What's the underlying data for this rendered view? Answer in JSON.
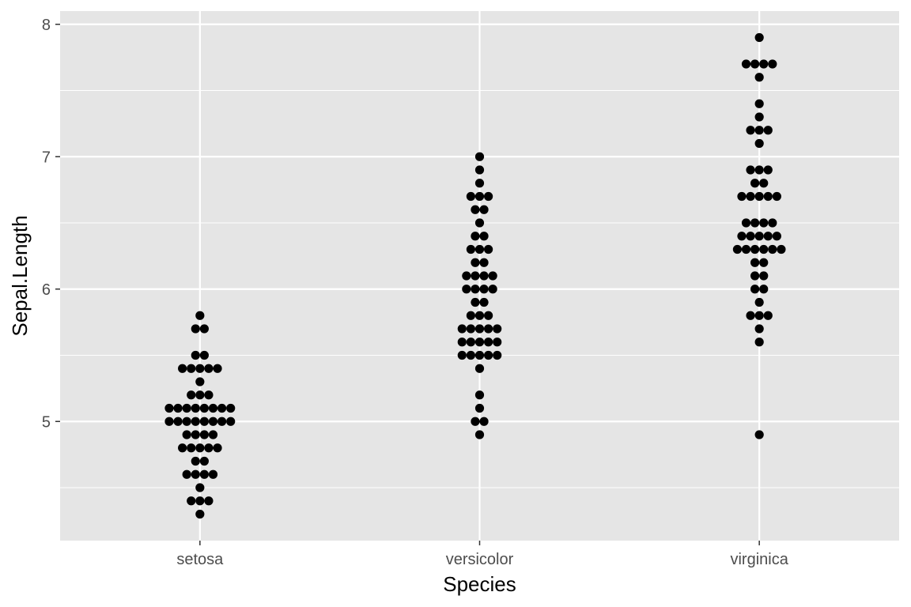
{
  "chart_data": {
    "type": "scatter",
    "subtype": "dotplot",
    "xlabel": "Species",
    "ylabel": "Sepal.Length",
    "categories": [
      "setosa",
      "versicolor",
      "virginica"
    ],
    "ylim": [
      4.1,
      8.1
    ],
    "y_ticks": [
      5,
      6,
      7,
      8
    ],
    "y_minor_ticks": [
      4.5,
      5.5,
      6.5,
      7.5
    ],
    "grid": true,
    "legend": "none",
    "colors": {
      "panel": "#e5e5e5",
      "grid": "#ffffff",
      "point": "#000000"
    },
    "bin_counts": [
      [
        {
          "y": 4.3,
          "n": 1
        },
        {
          "y": 4.4,
          "n": 3
        },
        {
          "y": 4.5,
          "n": 1
        },
        {
          "y": 4.6,
          "n": 4
        },
        {
          "y": 4.7,
          "n": 2
        },
        {
          "y": 4.8,
          "n": 5
        },
        {
          "y": 4.9,
          "n": 4
        },
        {
          "y": 5.0,
          "n": 8
        },
        {
          "y": 5.1,
          "n": 8
        },
        {
          "y": 5.2,
          "n": 3
        },
        {
          "y": 5.3,
          "n": 1
        },
        {
          "y": 5.4,
          "n": 5
        },
        {
          "y": 5.5,
          "n": 2
        },
        {
          "y": 5.7,
          "n": 2
        },
        {
          "y": 5.8,
          "n": 1
        }
      ],
      [
        {
          "y": 4.9,
          "n": 1
        },
        {
          "y": 5.0,
          "n": 2
        },
        {
          "y": 5.1,
          "n": 1
        },
        {
          "y": 5.2,
          "n": 1
        },
        {
          "y": 5.4,
          "n": 1
        },
        {
          "y": 5.5,
          "n": 5
        },
        {
          "y": 5.6,
          "n": 5
        },
        {
          "y": 5.7,
          "n": 5
        },
        {
          "y": 5.8,
          "n": 3
        },
        {
          "y": 5.9,
          "n": 2
        },
        {
          "y": 6.0,
          "n": 4
        },
        {
          "y": 6.1,
          "n": 4
        },
        {
          "y": 6.2,
          "n": 2
        },
        {
          "y": 6.3,
          "n": 3
        },
        {
          "y": 6.4,
          "n": 2
        },
        {
          "y": 6.5,
          "n": 1
        },
        {
          "y": 6.6,
          "n": 2
        },
        {
          "y": 6.7,
          "n": 3
        },
        {
          "y": 6.8,
          "n": 1
        },
        {
          "y": 6.9,
          "n": 1
        },
        {
          "y": 7.0,
          "n": 1
        }
      ],
      [
        {
          "y": 4.9,
          "n": 1
        },
        {
          "y": 5.6,
          "n": 1
        },
        {
          "y": 5.7,
          "n": 1
        },
        {
          "y": 5.8,
          "n": 3
        },
        {
          "y": 5.9,
          "n": 1
        },
        {
          "y": 6.0,
          "n": 2
        },
        {
          "y": 6.1,
          "n": 2
        },
        {
          "y": 6.2,
          "n": 2
        },
        {
          "y": 6.3,
          "n": 6
        },
        {
          "y": 6.4,
          "n": 5
        },
        {
          "y": 6.5,
          "n": 4
        },
        {
          "y": 6.7,
          "n": 5
        },
        {
          "y": 6.8,
          "n": 2
        },
        {
          "y": 6.9,
          "n": 3
        },
        {
          "y": 7.1,
          "n": 1
        },
        {
          "y": 7.2,
          "n": 3
        },
        {
          "y": 7.3,
          "n": 1
        },
        {
          "y": 7.4,
          "n": 1
        },
        {
          "y": 7.6,
          "n": 1
        },
        {
          "y": 7.7,
          "n": 4
        },
        {
          "y": 7.9,
          "n": 1
        }
      ]
    ]
  }
}
